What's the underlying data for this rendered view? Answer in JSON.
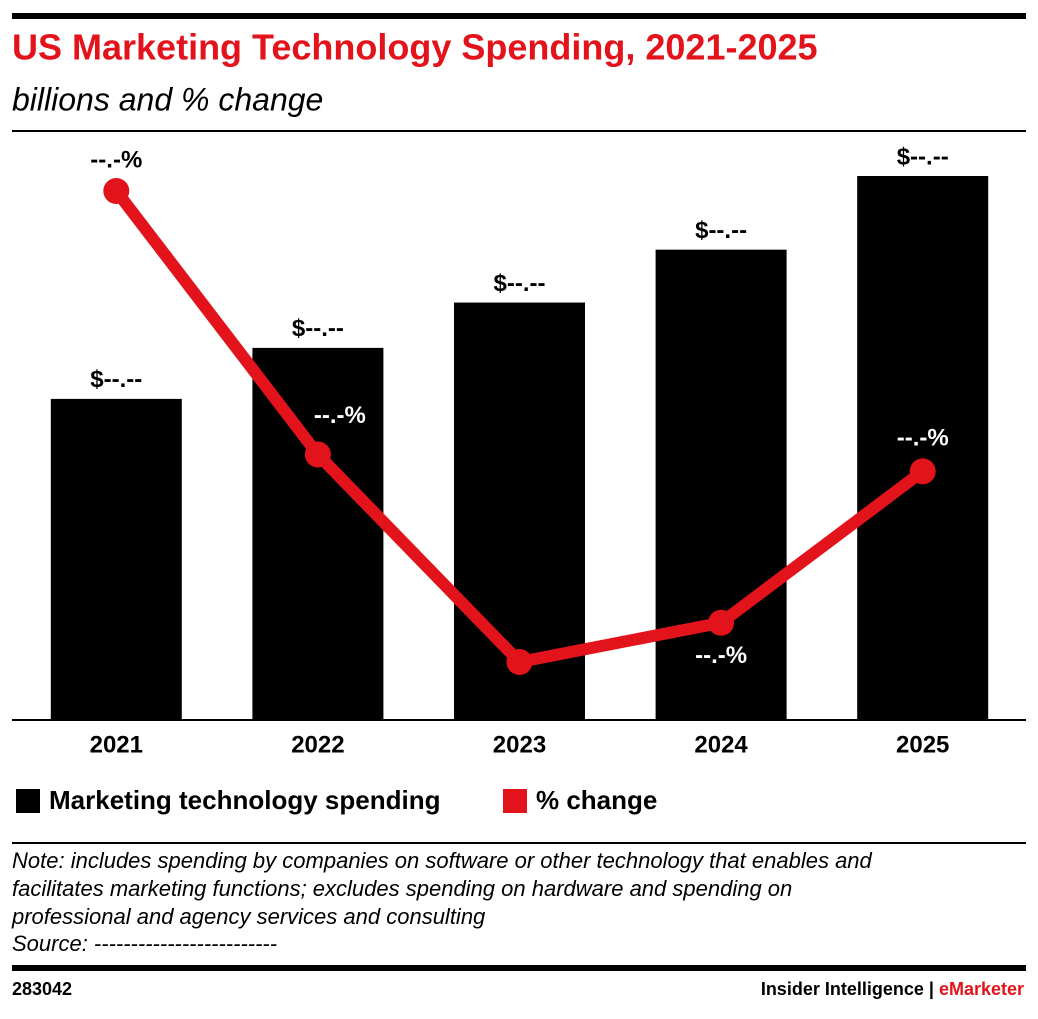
{
  "chart_data": {
    "type": "bar_line",
    "title": "US Marketing Technology Spending, 2021-2025",
    "subtitle": "billions and % change",
    "categories": [
      "2021",
      "2022",
      "2023",
      "2024",
      "2025"
    ],
    "series": [
      {
        "name": "Marketing technology spending",
        "color": "#000000",
        "type": "bar",
        "values": [
          17.0,
          19.7,
          22.1,
          24.9,
          28.8
        ],
        "value_labels": [
          "$--.--",
          "$--.--",
          "$--.--",
          "$--.--",
          "$--.--"
        ]
      },
      {
        "name": "% change",
        "color": "#e3131b",
        "type": "line",
        "axis": "y2",
        "values": [
          20.6,
          15.9,
          12.2,
          12.9,
          15.6
        ],
        "value_labels": [
          "--.-%",
          "--.-%",
          "--.-%",
          "--.-%",
          "--.-%"
        ]
      }
    ],
    "note": [
      "Note: includes spending by companies on software or other technology that enables and",
      "facilitates marketing functions; excludes spending on hardware and spending on",
      "professional and agency services and consulting"
    ],
    "source": "Source: -------------------------",
    "chart_id": "283042",
    "brand": [
      "Insider Intelligence",
      "|",
      "eMarketer"
    ]
  }
}
